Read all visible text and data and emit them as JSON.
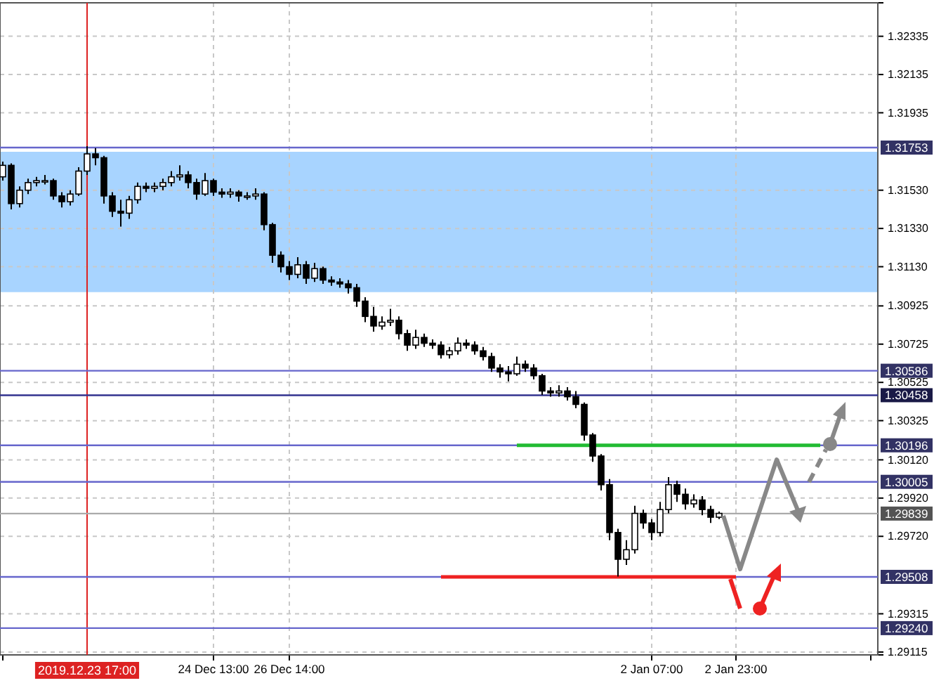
{
  "chart_data": {
    "type": "candlestick",
    "categories": [
      null,
      null,
      null,
      null,
      null,
      null,
      null,
      null,
      null,
      null,
      "2019.12.23 17:00",
      null,
      null,
      null,
      null,
      null,
      null,
      null,
      null,
      null,
      null,
      null,
      null,
      null,
      null,
      "24 Dec 13:00",
      null,
      null,
      null,
      null,
      null,
      null,
      null,
      null,
      "26 Dec 14:00",
      null,
      null,
      null,
      null,
      null,
      null,
      null,
      null,
      null,
      null,
      null,
      null,
      null,
      null,
      null,
      null,
      null,
      null,
      null,
      null,
      null,
      null,
      null,
      null,
      null,
      null,
      null,
      null,
      null,
      null,
      null,
      null,
      null,
      null,
      null,
      null,
      null,
      null,
      null,
      null,
      null,
      null,
      "2 Jan 07:00",
      null,
      null,
      null,
      null,
      null,
      null,
      null,
      null,
      null,
      "2 Jan 23:00",
      null,
      null,
      null,
      null,
      null,
      null,
      null,
      null,
      null,
      null,
      null,
      null,
      null,
      null,
      null,
      null
    ],
    "ohlc": [
      [
        1.316,
        1.3168,
        1.3158,
        1.3166
      ],
      [
        1.3166,
        1.3167,
        1.3143,
        1.3146
      ],
      [
        1.3146,
        1.3155,
        1.3144,
        1.3153
      ],
      [
        1.3153,
        1.3159,
        1.3151,
        1.3157
      ],
      [
        1.3157,
        1.316,
        1.3155,
        1.3158
      ],
      [
        1.3158,
        1.3161,
        1.3156,
        1.3158
      ],
      [
        1.3158,
        1.3159,
        1.3148,
        1.315
      ],
      [
        1.315,
        1.3152,
        1.3144,
        1.3147
      ],
      [
        1.3147,
        1.3153,
        1.3145,
        1.3151
      ],
      [
        1.3151,
        1.3165,
        1.315,
        1.3163
      ],
      [
        1.3163,
        1.3176,
        1.3161,
        1.3172
      ],
      [
        1.3172,
        1.3175,
        1.3166,
        1.317
      ],
      [
        1.317,
        1.3171,
        1.3146,
        1.315
      ],
      [
        1.315,
        1.3152,
        1.3139,
        1.3142
      ],
      [
        1.3142,
        1.3148,
        1.3134,
        1.3141
      ],
      [
        1.3141,
        1.315,
        1.3138,
        1.3148
      ],
      [
        1.3148,
        1.3157,
        1.3146,
        1.3155
      ],
      [
        1.3155,
        1.3157,
        1.3152,
        1.3154
      ],
      [
        1.3154,
        1.3157,
        1.3152,
        1.3155
      ],
      [
        1.3155,
        1.3159,
        1.3153,
        1.3157
      ],
      [
        1.3157,
        1.3163,
        1.3155,
        1.316
      ],
      [
        1.316,
        1.3166,
        1.3158,
        1.3161
      ],
      [
        1.3161,
        1.3163,
        1.3154,
        1.3157
      ],
      [
        1.3157,
        1.3159,
        1.3148,
        1.3151
      ],
      [
        1.3151,
        1.3162,
        1.315,
        1.3158
      ],
      [
        1.3158,
        1.3159,
        1.315,
        1.3152
      ],
      [
        1.3152,
        1.3154,
        1.3149,
        1.3151
      ],
      [
        1.3151,
        1.3154,
        1.3149,
        1.3152
      ],
      [
        1.3152,
        1.3153,
        1.3147,
        1.315
      ],
      [
        1.315,
        1.3152,
        1.3148,
        1.315
      ],
      [
        1.315,
        1.3154,
        1.3148,
        1.3151
      ],
      [
        1.3151,
        1.3152,
        1.3132,
        1.3135
      ],
      [
        1.3135,
        1.3136,
        1.3115,
        1.3119
      ],
      [
        1.3119,
        1.3121,
        1.311,
        1.3113
      ],
      [
        1.3113,
        1.3116,
        1.3106,
        1.3109
      ],
      [
        1.3109,
        1.3118,
        1.3107,
        1.3114
      ],
      [
        1.3114,
        1.3116,
        1.3104,
        1.3107
      ],
      [
        1.3107,
        1.3115,
        1.3105,
        1.3112
      ],
      [
        1.3112,
        1.3113,
        1.3104,
        1.3106
      ],
      [
        1.3106,
        1.3108,
        1.3103,
        1.3105
      ],
      [
        1.3105,
        1.3107,
        1.3102,
        1.3104
      ],
      [
        1.3104,
        1.3106,
        1.3099,
        1.3102
      ],
      [
        1.3102,
        1.3104,
        1.3092,
        1.3095
      ],
      [
        1.3095,
        1.3097,
        1.3084,
        1.3087
      ],
      [
        1.3087,
        1.3092,
        1.3079,
        1.3082
      ],
      [
        1.3082,
        1.3087,
        1.308,
        1.3084
      ],
      [
        1.3084,
        1.3091,
        1.3082,
        1.3085
      ],
      [
        1.3085,
        1.3087,
        1.3075,
        1.3078
      ],
      [
        1.3078,
        1.308,
        1.3069,
        1.3072
      ],
      [
        1.3072,
        1.308,
        1.307,
        1.3076
      ],
      [
        1.3076,
        1.3078,
        1.3071,
        1.3073
      ],
      [
        1.3073,
        1.3075,
        1.307,
        1.3072
      ],
      [
        1.3072,
        1.3074,
        1.3065,
        1.3067
      ],
      [
        1.3067,
        1.3071,
        1.3065,
        1.3069
      ],
      [
        1.3069,
        1.3076,
        1.3067,
        1.3073
      ],
      [
        1.3073,
        1.3075,
        1.307,
        1.3072
      ],
      [
        1.3072,
        1.3074,
        1.3067,
        1.3069
      ],
      [
        1.3069,
        1.3071,
        1.3064,
        1.3066
      ],
      [
        1.3066,
        1.3068,
        1.3058,
        1.306
      ],
      [
        1.306,
        1.3062,
        1.3055,
        1.3058
      ],
      [
        1.3058,
        1.3061,
        1.3053,
        1.3057
      ],
      [
        1.3057,
        1.3066,
        1.3056,
        1.3062
      ],
      [
        1.3062,
        1.3064,
        1.3058,
        1.306
      ],
      [
        1.306,
        1.3062,
        1.3054,
        1.3056
      ],
      [
        1.3056,
        1.3057,
        1.3046,
        1.3048
      ],
      [
        1.3048,
        1.305,
        1.3045,
        1.3047
      ],
      [
        1.3047,
        1.3051,
        1.3045,
        1.3048
      ],
      [
        1.3048,
        1.305,
        1.3043,
        1.3045
      ],
      [
        1.3045,
        1.3048,
        1.3039,
        1.3041
      ],
      [
        1.3041,
        1.3042,
        1.3022,
        1.3025
      ],
      [
        1.3025,
        1.3026,
        1.3011,
        1.3014
      ],
      [
        1.3014,
        1.3015,
        1.2996,
        1.2999
      ],
      [
        1.2999,
        1.3002,
        1.297,
        1.2974
      ],
      [
        1.2974,
        1.2976,
        1.2951,
        1.296
      ],
      [
        1.296,
        1.297,
        1.2957,
        1.2965
      ],
      [
        1.2965,
        1.2988,
        1.2963,
        1.2984
      ],
      [
        1.2984,
        1.2986,
        1.2976,
        1.2979
      ],
      [
        1.2979,
        1.2981,
        1.297,
        1.2974
      ],
      [
        1.2974,
        1.299,
        1.2972,
        1.2986
      ],
      [
        1.2986,
        1.3003,
        1.2984,
        1.2999
      ],
      [
        1.2999,
        1.3001,
        1.299,
        1.2994
      ],
      [
        1.2994,
        1.2997,
        1.2986,
        1.2989
      ],
      [
        1.2989,
        1.2994,
        1.2987,
        1.2991
      ],
      [
        1.2991,
        1.2993,
        1.2983,
        1.2986
      ],
      [
        1.2986,
        1.2988,
        1.2979,
        1.2982
      ],
      [
        1.2982,
        1.2985,
        1.2981,
        1.2984
      ],
      null,
      null,
      null,
      null,
      null,
      null,
      null,
      null,
      null,
      null,
      null,
      null,
      null,
      null,
      null,
      null,
      null,
      null
    ],
    "series": [
      {
        "type": "line",
        "color": "#22bb33",
        "values": [
          null,
          null,
          null,
          null,
          null,
          null,
          null,
          null,
          null,
          null,
          null,
          null,
          null,
          null,
          null,
          null,
          null,
          null,
          null,
          null,
          null,
          null,
          null,
          null,
          null,
          null,
          null,
          null,
          null,
          null,
          null,
          null,
          null,
          null,
          null,
          null,
          null,
          null,
          null,
          null,
          null,
          null,
          null,
          null,
          null,
          null,
          null,
          null,
          null,
          null,
          null,
          null,
          null,
          null,
          null,
          null,
          null,
          null,
          null,
          null,
          null,
          1.30196,
          1.30196,
          1.30196,
          1.30196,
          1.30196,
          1.30196,
          1.30196,
          1.30196,
          1.30196,
          1.30196,
          1.30196,
          1.30196,
          1.30196,
          1.30196,
          1.30196,
          1.30196,
          1.30196,
          1.30196,
          1.30196,
          1.30196,
          1.30196,
          1.30196,
          1.30196,
          1.30196,
          1.30196,
          1.30196,
          1.30196,
          1.30196,
          1.30196,
          1.30196,
          1.30196,
          1.30196,
          1.30196,
          1.30196,
          1.30196,
          1.30196,
          1.30196,
          null,
          null,
          null,
          null,
          null,
          null
        ]
      },
      {
        "type": "line",
        "color": "#ee2222",
        "values": [
          null,
          null,
          null,
          null,
          null,
          null,
          null,
          null,
          null,
          null,
          null,
          null,
          null,
          null,
          null,
          null,
          null,
          null,
          null,
          null,
          null,
          null,
          null,
          null,
          null,
          null,
          null,
          null,
          null,
          null,
          null,
          null,
          null,
          null,
          null,
          null,
          null,
          null,
          null,
          null,
          null,
          null,
          null,
          null,
          null,
          null,
          null,
          null,
          null,
          null,
          null,
          null,
          1.29508,
          1.29508,
          1.29508,
          1.29508,
          1.29508,
          1.29508,
          1.29508,
          1.29508,
          1.29508,
          1.29508,
          1.29508,
          1.29508,
          1.29508,
          1.29508,
          1.29508,
          1.29508,
          1.29508,
          1.29508,
          1.29508,
          1.29508,
          1.29508,
          1.29508,
          1.29508,
          1.29508,
          1.29508,
          1.29508,
          1.29508,
          1.29508,
          1.29508,
          1.29508,
          1.29508,
          1.29508,
          1.29508,
          1.29508,
          1.29508,
          1.29508,
          null,
          null,
          null,
          null,
          null,
          null,
          null,
          null,
          null,
          null,
          null,
          null,
          null,
          null,
          null,
          null
        ]
      }
    ],
    "ylim": [
      1.291,
      1.3251
    ],
    "yticks": [
      1.32335,
      1.32135,
      1.31935,
      {
        "value": 1.3153,
        "label": "1.31530"
      },
      {
        "value": 1.3133,
        "label": "1.31330"
      },
      {
        "value": 1.3113,
        "label": "1.31130"
      },
      1.30925,
      1.30725,
      1.30525,
      1.30325,
      {
        "value": 1.3012,
        "label": "1.30120"
      },
      {
        "value": 1.2992,
        "label": "1.29920"
      },
      {
        "value": 1.2972,
        "label": "1.29720"
      },
      1.29315,
      1.29115
    ],
    "grid": true,
    "ref_lines": [
      {
        "axis": "x",
        "value": "2019.12.23 17:00",
        "color": "#dd2222"
      },
      {
        "axis": "y",
        "value": 1.31753,
        "label": "1.31753",
        "color": "#6666cc"
      },
      {
        "axis": "y",
        "value": 1.30586,
        "label": "1.30586",
        "color": "#6666cc"
      },
      {
        "axis": "y",
        "value": 1.30458,
        "label": "1.30458",
        "color": "#33338f"
      },
      {
        "axis": "y",
        "value": 1.30196,
        "label": "1.30196",
        "color": "#6666cc"
      },
      {
        "axis": "y",
        "value": 1.30005,
        "label": "1.30005",
        "color": "#6666cc"
      },
      {
        "axis": "y",
        "value": 1.29839,
        "label": "1.29839",
        "color": "#aaaaaa"
      },
      {
        "axis": "y",
        "value": 1.29508,
        "label": "1.29508",
        "color": "#6666cc"
      },
      {
        "axis": "y",
        "value": 1.2924,
        "label": "1.29240",
        "color": "#6666cc"
      }
    ],
    "bands": [
      {
        "axis": "y",
        "from": 1.30997,
        "to": 1.31731,
        "color": "#99ccff"
      }
    ]
  }
}
